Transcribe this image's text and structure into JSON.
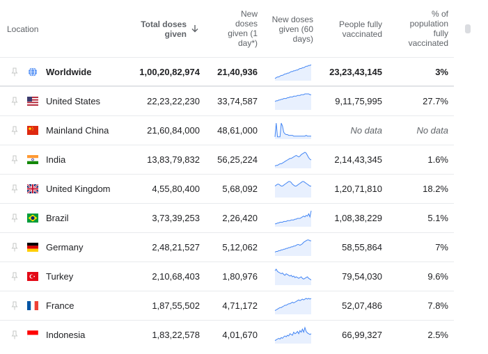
{
  "header": {
    "location": "Location",
    "total_doses": [
      "Total doses",
      "given"
    ],
    "new_doses_1": [
      "New",
      "doses",
      "given (1",
      "day*)"
    ],
    "new_doses_60": [
      "New doses",
      "given (60",
      "days)"
    ],
    "people_fully": [
      "People fully",
      "vaccinated"
    ],
    "pct_population": [
      "% of",
      "population",
      "fully",
      "vaccinated"
    ]
  },
  "rows": [
    {
      "location": "Worldwide",
      "icon": "globe-icon",
      "total": "1,00,20,82,974",
      "new1": "21,40,936",
      "people": "23,23,43,145",
      "pct": "3%"
    },
    {
      "location": "United States",
      "icon": "flag-us-icon",
      "total": "22,23,22,230",
      "new1": "33,74,587",
      "people": "9,11,75,995",
      "pct": "27.7%"
    },
    {
      "location": "Mainland China",
      "icon": "flag-cn-icon",
      "total": "21,60,84,000",
      "new1": "48,61,000",
      "people": "No data",
      "pct": "No data"
    },
    {
      "location": "India",
      "icon": "flag-in-icon",
      "total": "13,83,79,832",
      "new1": "56,25,224",
      "people": "2,14,43,345",
      "pct": "1.6%"
    },
    {
      "location": "United Kingdom",
      "icon": "flag-gb-icon",
      "total": "4,55,80,400",
      "new1": "5,68,092",
      "people": "1,20,71,810",
      "pct": "18.2%"
    },
    {
      "location": "Brazil",
      "icon": "flag-br-icon",
      "total": "3,73,39,253",
      "new1": "2,26,420",
      "people": "1,08,38,229",
      "pct": "5.1%"
    },
    {
      "location": "Germany",
      "icon": "flag-de-icon",
      "total": "2,48,21,527",
      "new1": "5,12,062",
      "people": "58,55,864",
      "pct": "7%"
    },
    {
      "location": "Turkey",
      "icon": "flag-tr-icon",
      "total": "2,10,68,403",
      "new1": "1,80,976",
      "people": "79,54,030",
      "pct": "9.6%"
    },
    {
      "location": "France",
      "icon": "flag-fr-icon",
      "total": "1,87,55,502",
      "new1": "4,71,172",
      "people": "52,07,486",
      "pct": "7.8%"
    },
    {
      "location": "Indonesia",
      "icon": "flag-id-icon",
      "total": "1,83,22,578",
      "new1": "4,01,670",
      "people": "66,99,327",
      "pct": "2.5%"
    }
  ],
  "sparklines": [
    [
      2,
      3,
      4,
      4,
      5,
      6,
      6,
      7,
      8,
      8,
      9,
      9,
      10,
      11,
      11,
      12,
      12,
      13,
      13,
      14,
      15,
      15,
      16,
      16,
      17,
      18,
      18,
      19,
      19,
      20
    ],
    [
      10,
      11,
      11,
      12,
      12,
      13,
      13,
      14,
      14,
      14,
      15,
      15,
      16,
      16,
      16,
      17,
      17,
      17,
      18,
      18,
      18,
      19,
      19,
      19,
      20,
      20,
      20,
      20,
      19,
      19
    ],
    [
      2,
      20,
      2,
      2,
      2,
      20,
      16,
      8,
      6,
      5,
      5,
      4,
      4,
      4,
      4,
      3,
      3,
      3,
      3,
      3,
      3,
      3,
      3,
      3,
      3,
      4,
      3,
      3,
      3,
      3
    ],
    [
      2,
      3,
      3,
      4,
      5,
      5,
      6,
      7,
      8,
      9,
      10,
      11,
      12,
      12,
      13,
      14,
      15,
      16,
      15,
      14,
      15,
      17,
      18,
      19,
      20,
      19,
      16,
      13,
      11,
      10
    ],
    [
      12,
      13,
      14,
      14,
      13,
      12,
      12,
      13,
      14,
      15,
      16,
      17,
      17,
      16,
      14,
      13,
      12,
      12,
      13,
      14,
      15,
      16,
      17,
      17,
      16,
      15,
      14,
      13,
      12,
      12
    ],
    [
      3,
      3,
      4,
      4,
      5,
      5,
      5,
      6,
      6,
      6,
      7,
      7,
      7,
      8,
      8,
      8,
      9,
      9,
      10,
      10,
      10,
      11,
      12,
      13,
      12,
      14,
      13,
      16,
      12,
      20
    ],
    [
      4,
      5,
      5,
      6,
      6,
      7,
      7,
      8,
      8,
      9,
      9,
      10,
      10,
      11,
      11,
      12,
      12,
      13,
      14,
      14,
      13,
      14,
      15,
      17,
      18,
      19,
      20,
      20,
      19,
      19
    ],
    [
      18,
      20,
      17,
      16,
      15,
      14,
      15,
      13,
      12,
      14,
      13,
      12,
      11,
      12,
      10,
      11,
      9,
      10,
      9,
      8,
      9,
      10,
      8,
      7,
      8,
      9,
      10,
      8,
      7,
      6
    ],
    [
      4,
      5,
      6,
      7,
      8,
      8,
      9,
      10,
      11,
      11,
      12,
      13,
      13,
      14,
      15,
      14,
      15,
      16,
      17,
      18,
      17,
      18,
      19,
      18,
      19,
      20,
      19,
      20,
      19,
      20
    ],
    [
      3,
      4,
      5,
      6,
      5,
      7,
      6,
      8,
      9,
      8,
      10,
      9,
      12,
      11,
      10,
      14,
      12,
      13,
      15,
      12,
      16,
      14,
      18,
      14,
      20,
      15,
      13,
      12,
      11,
      12
    ]
  ],
  "colors": {
    "spark_line": "#4285f4",
    "spark_fill": "#e8f0fe",
    "header_text": "#5f6368",
    "divider": "#e8eaed"
  }
}
